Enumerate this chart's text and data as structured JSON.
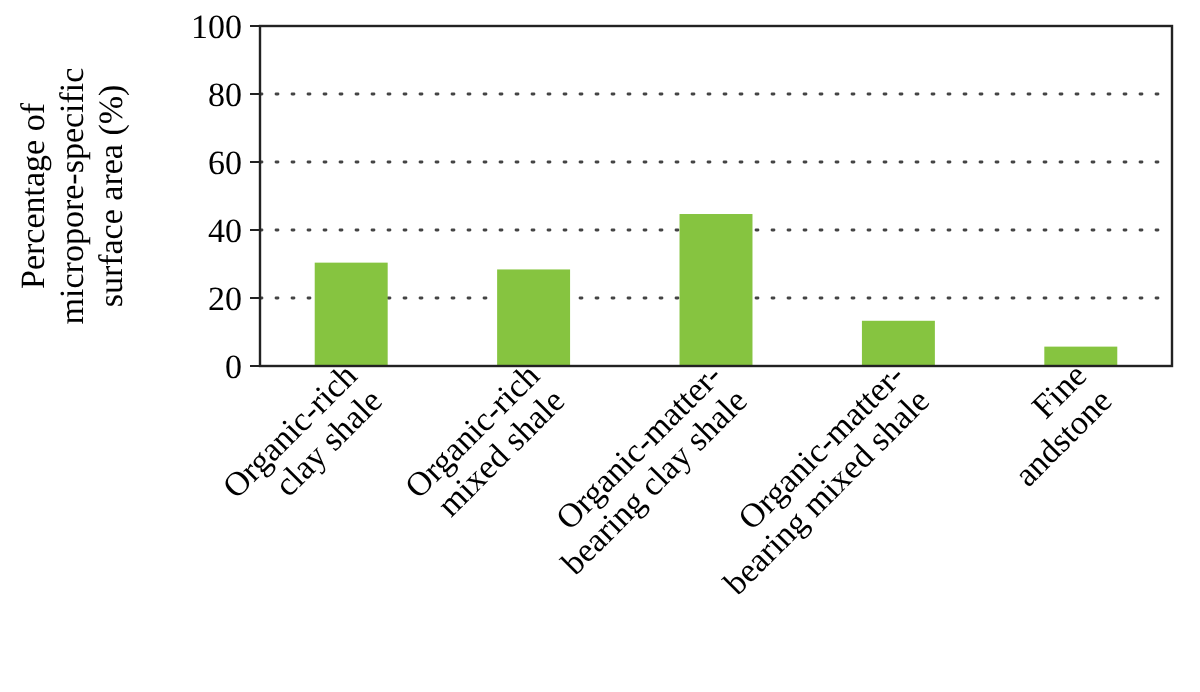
{
  "chart_data": {
    "type": "bar",
    "ylabel": "Percentage of\nmicropore-specific\nsurface area (%)",
    "categories": [
      "Organic-rich\nclay shale",
      "Organic-rich\nmixed shale",
      "Organic-matter-\nbearing clay shale",
      "Organic-matter-\nbearing mixed shale",
      "Fine\nandstone"
    ],
    "values": [
      30.4,
      28.4,
      44.7,
      13.3,
      5.7
    ],
    "color": "#86c440",
    "ylim": [
      0,
      100
    ],
    "yticks": [
      0,
      20,
      40,
      60,
      80,
      100
    ],
    "grid": "y"
  }
}
